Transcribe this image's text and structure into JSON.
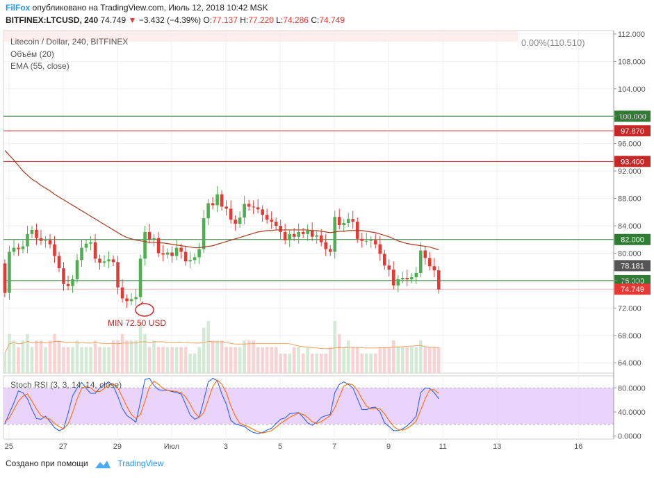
{
  "header": {
    "brand": "FilFox",
    "published": " опубликовано на TradingView.com, Июль 12, 2018 10:42 MSK",
    "symbol": "BITFINEX:LTCUSD, 240",
    "last": "74.749",
    "change": "−3.432 (−4.39%)",
    "o_label": "O:",
    "o_value": "77.137",
    "h_label": "H:",
    "h_value": "77.220",
    "l_label": "L:",
    "l_value": "74.286",
    "c_label": "C:",
    "c_value": "74.749"
  },
  "legend": {
    "title": "Litecoin / Dollar, 240, BITFINEX",
    "volume": "Объём (20)",
    "ema": "EMA (55, close)",
    "pct": "0.00%(110.510)",
    "stoch": "Stoch RSI (3, 3, 14, 14, close)"
  },
  "annotation": "MIN 72.50 USD",
  "footer": {
    "created": "Создано при помощи",
    "brand": "TradingView"
  },
  "colors": {
    "up": "#4caf50",
    "down": "#e53935",
    "ema": "#a83c1c",
    "green_line": "#2e7d32",
    "red_line": "#c62828"
  },
  "chart_data": [
    {
      "type": "candlestick",
      "title": "Litecoin / Dollar, 240, BITFINEX",
      "ylim": [
        62.5,
        112.5
      ],
      "y_ticks": [
        "112.000",
        "108.000",
        "104.000",
        "100.000",
        "96.000",
        "92.000",
        "88.000",
        "84.000",
        "80.000",
        "76.000",
        "72.000",
        "68.000",
        "64.000"
      ],
      "x_ticks": [
        {
          "label": "25",
          "day": 25
        },
        {
          "label": "27",
          "day": 27
        },
        {
          "label": "29",
          "day": 29
        },
        {
          "label": "Июл",
          "day": 31
        },
        {
          "label": "3",
          "day": 33
        },
        {
          "label": "5",
          "day": 35
        },
        {
          "label": "7",
          "day": 37
        },
        {
          "label": "9",
          "day": 39
        },
        {
          "label": "11",
          "day": 41
        },
        {
          "label": "13",
          "day": 43
        },
        {
          "label": "16",
          "day": 46
        }
      ],
      "xlim": [
        24.8,
        47.3
      ],
      "candles_per_day": 6,
      "first_candle_day": 24.85,
      "horizontal_levels": [
        {
          "value": 100.0,
          "label": "100.000",
          "color": "#2e7d32"
        },
        {
          "value": 97.87,
          "label": "97.870",
          "color": "#c62828"
        },
        {
          "value": 93.4,
          "label": "93.400",
          "color": "#c62828"
        },
        {
          "value": 82.0,
          "label": "82.000",
          "color": "#2e7d32"
        },
        {
          "value": 76.0,
          "label": "76.000",
          "color": "#2e7d32"
        }
      ],
      "price_tags": [
        {
          "value": 78.181,
          "label": "78.181",
          "color": "#555555"
        },
        {
          "value": 74.749,
          "label": "74.749",
          "color": "#e53935"
        }
      ],
      "closes": [
        74.2,
        80.2,
        80.8,
        80.6,
        81.0,
        82.8,
        83.4,
        82.2,
        81.8,
        81.9,
        81.3,
        79.6,
        77.8,
        75.5,
        75.2,
        76.2,
        79.0,
        80.8,
        81.4,
        81.6,
        79.2,
        78.6,
        78.8,
        79.1,
        78.7,
        75.0,
        73.4,
        73.0,
        73.3,
        73.6,
        79.2,
        83.1,
        82.0,
        82.2,
        80.0,
        79.8,
        80.1,
        79.6,
        80.8,
        80.2,
        78.8,
        79.0,
        79.4,
        80.6,
        85.1,
        87.3,
        87.0,
        88.6,
        86.8,
        86.5,
        84.9,
        84.3,
        85.2,
        87.2,
        86.8,
        86.7,
        86.4,
        85.6,
        84.9,
        84.6,
        84.0,
        83.1,
        81.9,
        82.8,
        82.4,
        83.1,
        82.8,
        83.3,
        82.4,
        82.6,
        81.6,
        80.6,
        80.2,
        85.3,
        84.1,
        84.4,
        85.0,
        84.6,
        82.1,
        81.8,
        81.8,
        81.9,
        81.3,
        79.9,
        78.2,
        77.6,
        75.3,
        76.2,
        76.4,
        76.2,
        76.5,
        77.1,
        80.4,
        79.3,
        78.1,
        77.5,
        74.7
      ],
      "volume_ylim": [
        0,
        30000
      ],
      "volumes": [
        3,
        6,
        5,
        4,
        5,
        6,
        4,
        5,
        5,
        4,
        5,
        6,
        5,
        4,
        4,
        4,
        5,
        4,
        4,
        4,
        5,
        4,
        4,
        4,
        5,
        5,
        6,
        5,
        5,
        5,
        8,
        6,
        4,
        5,
        4,
        4,
        4,
        4,
        4,
        4,
        4,
        3,
        3,
        4,
        7,
        8,
        5,
        5,
        5,
        4,
        4,
        4,
        4,
        5,
        5,
        5,
        4,
        4,
        4,
        4,
        4,
        3,
        3,
        3,
        4,
        4,
        3,
        4,
        3,
        3,
        3,
        3,
        4,
        8,
        6,
        4,
        5,
        4,
        4,
        3,
        3,
        3,
        3,
        4,
        4,
        4,
        5,
        4,
        4,
        4,
        4,
        4,
        5,
        4,
        4,
        4,
        4
      ],
      "ema": [
        95.0,
        94.3,
        93.6,
        92.8,
        92.0,
        91.4,
        90.8,
        90.4,
        89.9,
        89.5,
        89.1,
        88.6,
        88.2,
        87.8,
        87.4,
        87.0,
        86.6,
        86.2,
        85.8,
        85.4,
        85.0,
        84.6,
        84.2,
        83.8,
        83.4,
        83.0,
        82.6,
        82.3,
        82.1,
        81.9,
        81.8,
        81.7,
        81.6,
        81.6,
        81.5,
        81.5,
        81.4,
        81.3,
        81.2,
        81.1,
        81.0,
        80.9,
        80.8,
        80.8,
        80.9,
        81.0,
        81.1,
        81.3,
        81.5,
        81.7,
        81.9,
        82.1,
        82.3,
        82.5,
        82.7,
        82.9,
        83.1,
        83.2,
        83.3,
        83.3,
        83.4,
        83.4,
        83.4,
        83.4,
        83.4,
        83.4,
        83.4,
        83.4,
        83.3,
        83.3,
        83.2,
        83.1,
        83.0,
        83.1,
        83.2,
        83.2,
        83.3,
        83.3,
        83.3,
        83.3,
        83.2,
        83.1,
        83.0,
        82.8,
        82.6,
        82.4,
        82.1,
        81.8,
        81.6,
        81.4,
        81.3,
        81.2,
        81.1,
        81.0,
        80.9,
        80.7,
        80.5
      ]
    },
    {
      "type": "line",
      "title": "Stoch RSI (3, 3, 14, 14, close)",
      "ylim": [
        -5,
        100
      ],
      "y_ticks": [
        "80.0000",
        "40.0000",
        "0.0000"
      ],
      "band": [
        20,
        80
      ],
      "series": [
        {
          "name": "K",
          "color": "#2962ff",
          "values": [
            20,
            38,
            55,
            75,
            72,
            62,
            44,
            29,
            28,
            33,
            24,
            14,
            9,
            12,
            38,
            67,
            80,
            89,
            79,
            71,
            71,
            80,
            86,
            90,
            83,
            66,
            46,
            34,
            29,
            23,
            57,
            94,
            96,
            84,
            77,
            76,
            76,
            74,
            72,
            70,
            53,
            35,
            28,
            31,
            59,
            90,
            96,
            92,
            70,
            53,
            26,
            20,
            18,
            16,
            10,
            6,
            4,
            6,
            10,
            13,
            21,
            28,
            30,
            37,
            38,
            39,
            31,
            22,
            18,
            23,
            31,
            34,
            36,
            72,
            86,
            90,
            86,
            80,
            62,
            44,
            44,
            47,
            48,
            40,
            22,
            16,
            9,
            9,
            12,
            17,
            24,
            33,
            72,
            80,
            79,
            72,
            62
          ]
        },
        {
          "name": "D",
          "color": "#ff6d00",
          "values": [
            24,
            30,
            44,
            58,
            66,
            70,
            58,
            45,
            34,
            30,
            28,
            21,
            16,
            12,
            20,
            39,
            62,
            79,
            83,
            80,
            74,
            74,
            79,
            85,
            86,
            80,
            65,
            49,
            36,
            29,
            36,
            58,
            82,
            91,
            86,
            79,
            76,
            75,
            74,
            72,
            65,
            53,
            39,
            31,
            39,
            60,
            82,
            93,
            86,
            72,
            50,
            33,
            21,
            18,
            15,
            11,
            7,
            5,
            7,
            9,
            15,
            21,
            26,
            31,
            35,
            38,
            36,
            31,
            24,
            21,
            24,
            29,
            34,
            47,
            65,
            83,
            87,
            85,
            76,
            62,
            50,
            45,
            46,
            45,
            37,
            26,
            16,
            11,
            10,
            13,
            18,
            25,
            43,
            62,
            77,
            77,
            71
          ]
        }
      ]
    }
  ]
}
